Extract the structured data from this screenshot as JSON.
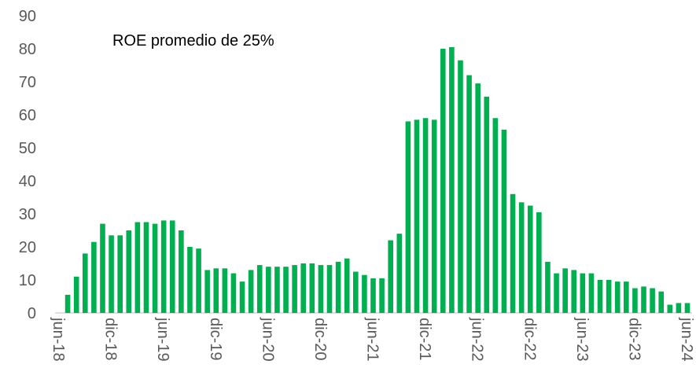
{
  "chart_data": {
    "type": "bar",
    "annotation": "ROE promedio de 25%",
    "categories": [
      "jun-18",
      null,
      null,
      null,
      null,
      null,
      "dic-18",
      null,
      null,
      null,
      null,
      null,
      "jun-19",
      null,
      null,
      null,
      null,
      null,
      "dic-19",
      null,
      null,
      null,
      null,
      null,
      "jun-20",
      null,
      null,
      null,
      null,
      null,
      "dic-20",
      null,
      null,
      null,
      null,
      null,
      "jun-21",
      null,
      null,
      null,
      null,
      null,
      "dic-21",
      null,
      null,
      null,
      null,
      null,
      "jun-22",
      null,
      null,
      null,
      null,
      null,
      "dic-22",
      null,
      null,
      null,
      null,
      null,
      "jun-23",
      null,
      null,
      null,
      null,
      null,
      "dic-23",
      null,
      null,
      null,
      null,
      null,
      "jun-24"
    ],
    "values": [
      null,
      5.5,
      11,
      18,
      21.5,
      27,
      23.5,
      23.5,
      25,
      27.5,
      27.5,
      27,
      28,
      28,
      25,
      20,
      19.5,
      13,
      13.5,
      13.5,
      12,
      9.5,
      13,
      14.5,
      14,
      14,
      14,
      14.5,
      15,
      15,
      14.5,
      14.5,
      15.5,
      16.5,
      12.5,
      11.5,
      10.5,
      10.5,
      22,
      24,
      58,
      58.5,
      59,
      58.5,
      80,
      80.5,
      76.5,
      72,
      69.5,
      65.5,
      59,
      55.5,
      36,
      33.5,
      32.5,
      30.5,
      15.5,
      12,
      13.5,
      13,
      12,
      12,
      10,
      10,
      9.5,
      9.5,
      7.5,
      8,
      7.5,
      6.5,
      2.5,
      3,
      3
    ],
    "color": "#00b050",
    "ylim": [
      0,
      90
    ],
    "yticks": [
      0,
      10,
      20,
      30,
      40,
      50,
      60,
      70,
      80,
      90
    ],
    "grid": false
  }
}
